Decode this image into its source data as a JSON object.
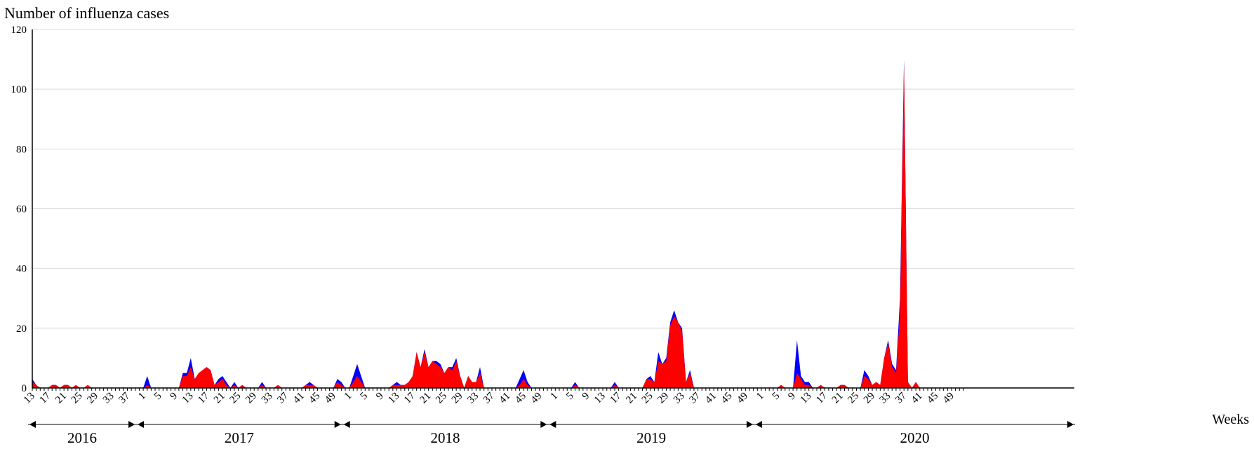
{
  "chart_data": {
    "type": "area",
    "ylabel": "Number of influenza cases",
    "xlabel": "Weeks",
    "ylim": [
      0,
      120
    ],
    "yticks": [
      0,
      20,
      40,
      60,
      80,
      100,
      120
    ],
    "grid": "horizontal",
    "x_tick_step_weeks": 4,
    "years": [
      {
        "label": "2016",
        "start_week": 13,
        "weeks": 40
      },
      {
        "label": "2017",
        "weeks": 52
      },
      {
        "label": "2018",
        "weeks": 52
      },
      {
        "label": "2019",
        "weeks": 52
      },
      {
        "label": "2020",
        "weeks": 52
      }
    ],
    "series": [
      {
        "color": "#0000ff",
        "values": [
          3,
          1,
          0,
          0,
          0,
          1,
          1,
          0,
          1,
          1,
          0,
          1,
          0,
          0,
          1,
          0,
          0,
          0,
          0,
          0,
          0,
          0,
          0,
          0,
          0,
          0,
          0,
          0,
          0,
          4,
          0,
          0,
          0,
          0,
          0,
          0,
          0,
          0,
          5,
          5,
          10,
          3,
          5,
          6,
          7,
          6,
          1,
          3,
          4,
          2,
          0,
          2,
          0,
          1,
          0,
          0,
          0,
          0,
          2,
          0,
          0,
          0,
          1,
          0,
          0,
          0,
          0,
          0,
          0,
          1,
          2,
          1,
          0,
          0,
          0,
          0,
          0,
          3,
          2,
          0,
          0,
          4,
          8,
          4,
          0,
          0,
          0,
          0,
          0,
          0,
          0,
          1,
          2,
          1,
          1,
          2,
          4,
          12,
          7,
          13,
          7,
          9,
          9,
          8,
          5,
          7,
          7,
          10,
          4,
          0,
          4,
          2,
          2,
          7,
          0,
          0,
          0,
          0,
          0,
          0,
          0,
          0,
          0,
          3,
          6,
          2,
          0,
          0,
          0,
          0,
          0,
          0,
          0,
          0,
          0,
          0,
          0,
          2,
          0,
          0,
          0,
          0,
          0,
          0,
          0,
          0,
          0,
          2,
          0,
          0,
          0,
          0,
          0,
          0,
          0,
          3,
          4,
          2,
          12,
          8,
          10,
          22,
          26,
          22,
          20,
          2,
          6,
          0,
          0,
          0,
          0,
          0,
          0,
          0,
          0,
          0,
          0,
          0,
          0,
          0,
          0,
          0,
          0,
          0,
          0,
          0,
          0,
          0,
          0,
          1,
          0,
          0,
          0,
          16,
          4,
          2,
          2,
          0,
          0,
          1,
          0,
          0,
          0,
          0,
          1,
          1,
          0,
          0,
          0,
          0,
          6,
          4,
          1,
          2,
          1,
          10,
          16,
          8,
          6,
          30,
          110,
          2,
          0,
          2,
          0,
          0,
          0,
          0,
          0,
          0,
          0,
          0,
          0,
          0,
          0,
          0,
          0,
          0,
          0,
          0,
          0,
          0,
          0,
          0,
          0,
          0,
          0,
          0,
          0,
          0,
          0,
          0,
          0,
          0,
          0,
          0,
          0,
          0,
          0,
          0,
          0,
          0,
          0,
          0
        ]
      },
      {
        "color": "#ff0000",
        "values": [
          2,
          1,
          0,
          0,
          0,
          1,
          1,
          0,
          1,
          1,
          0,
          1,
          0,
          0,
          1,
          0,
          0,
          0,
          0,
          0,
          0,
          0,
          0,
          0,
          0,
          0,
          0,
          0,
          0,
          1,
          0,
          0,
          0,
          0,
          0,
          0,
          0,
          0,
          4,
          4,
          7,
          3,
          5,
          6,
          7,
          6,
          1,
          2,
          3,
          1,
          0,
          1,
          0,
          1,
          0,
          0,
          0,
          0,
          1,
          0,
          0,
          0,
          1,
          0,
          0,
          0,
          0,
          0,
          0,
          1,
          1,
          1,
          0,
          0,
          0,
          0,
          0,
          2,
          1,
          0,
          0,
          2,
          4,
          2,
          0,
          0,
          0,
          0,
          0,
          0,
          0,
          1,
          1,
          1,
          1,
          2,
          4,
          12,
          7,
          12,
          7,
          9,
          8,
          7,
          5,
          7,
          6,
          9,
          4,
          0,
          4,
          2,
          2,
          5,
          0,
          0,
          0,
          0,
          0,
          0,
          0,
          0,
          0,
          1,
          3,
          1,
          0,
          0,
          0,
          0,
          0,
          0,
          0,
          0,
          0,
          0,
          0,
          1,
          0,
          0,
          0,
          0,
          0,
          0,
          0,
          0,
          0,
          1,
          0,
          0,
          0,
          0,
          0,
          0,
          0,
          3,
          3,
          2,
          9,
          8,
          9,
          21,
          24,
          22,
          19,
          2,
          5,
          0,
          0,
          0,
          0,
          0,
          0,
          0,
          0,
          0,
          0,
          0,
          0,
          0,
          0,
          0,
          0,
          0,
          0,
          0,
          0,
          0,
          0,
          1,
          0,
          0,
          0,
          5,
          3,
          1,
          1,
          0,
          0,
          1,
          0,
          0,
          0,
          0,
          1,
          1,
          0,
          0,
          0,
          0,
          4,
          3,
          1,
          2,
          1,
          10,
          15,
          7,
          5,
          25,
          108,
          2,
          0,
          2,
          0,
          0,
          0,
          0,
          0,
          0,
          0,
          0,
          0,
          0,
          0,
          0,
          0,
          0,
          0,
          0,
          0,
          0,
          0,
          0,
          0,
          0,
          0,
          0,
          0,
          0,
          0,
          0,
          0,
          0,
          0,
          0,
          0,
          0,
          0,
          0,
          0,
          0,
          0,
          0,
          0
        ]
      }
    ]
  }
}
